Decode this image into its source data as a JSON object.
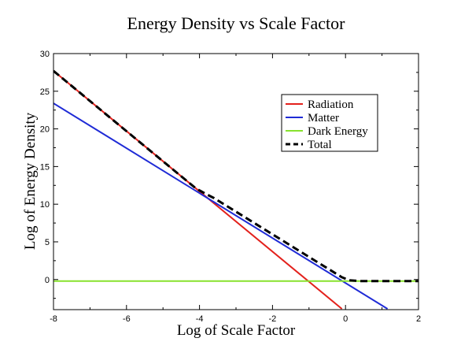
{
  "chart_data": {
    "type": "line",
    "title": "Energy Density vs Scale Factor",
    "xlabel": "Log of Scale Factor",
    "ylabel": "Log of Energy Density",
    "xlim": [
      -8,
      2
    ],
    "ylim": [
      -4,
      30
    ],
    "xticks": [
      -8,
      -6,
      -4,
      -2,
      0,
      2
    ],
    "xtick_labels": [
      "-8",
      "-6",
      "-4",
      "-2",
      "0",
      "2"
    ],
    "yticks": [
      0,
      5,
      10,
      15,
      20,
      25,
      30
    ],
    "ytick_labels": [
      "0",
      "5",
      "10",
      "15",
      "20",
      "25",
      "30"
    ],
    "grid": false,
    "legend_position": "top-right",
    "series": [
      {
        "name": "Radiation",
        "color": "#e3211c",
        "style": "solid",
        "x": [
          -8,
          -0.1
        ],
        "y": [
          27.7,
          -3.9
        ]
      },
      {
        "name": "Matter",
        "color": "#1f2bd6",
        "style": "solid",
        "x": [
          -8,
          1.15
        ],
        "y": [
          23.4,
          -3.9
        ]
      },
      {
        "name": "Dark Energy",
        "color": "#88e22e",
        "style": "solid",
        "x": [
          -8,
          2
        ],
        "y": [
          -0.2,
          -0.2
        ]
      },
      {
        "name": "Total",
        "color": "#000000",
        "style": "dashed",
        "x": [
          -8,
          -6,
          -4.1,
          -3.8,
          -3.6,
          -3,
          -2,
          -1,
          -0.5,
          -0.1,
          0.1,
          0.4,
          1,
          2
        ],
        "y": [
          27.7,
          19.7,
          12.1,
          11.3,
          10.8,
          9.0,
          6.0,
          3.0,
          1.5,
          0.3,
          -0.1,
          -0.2,
          -0.2,
          -0.2
        ]
      }
    ]
  }
}
